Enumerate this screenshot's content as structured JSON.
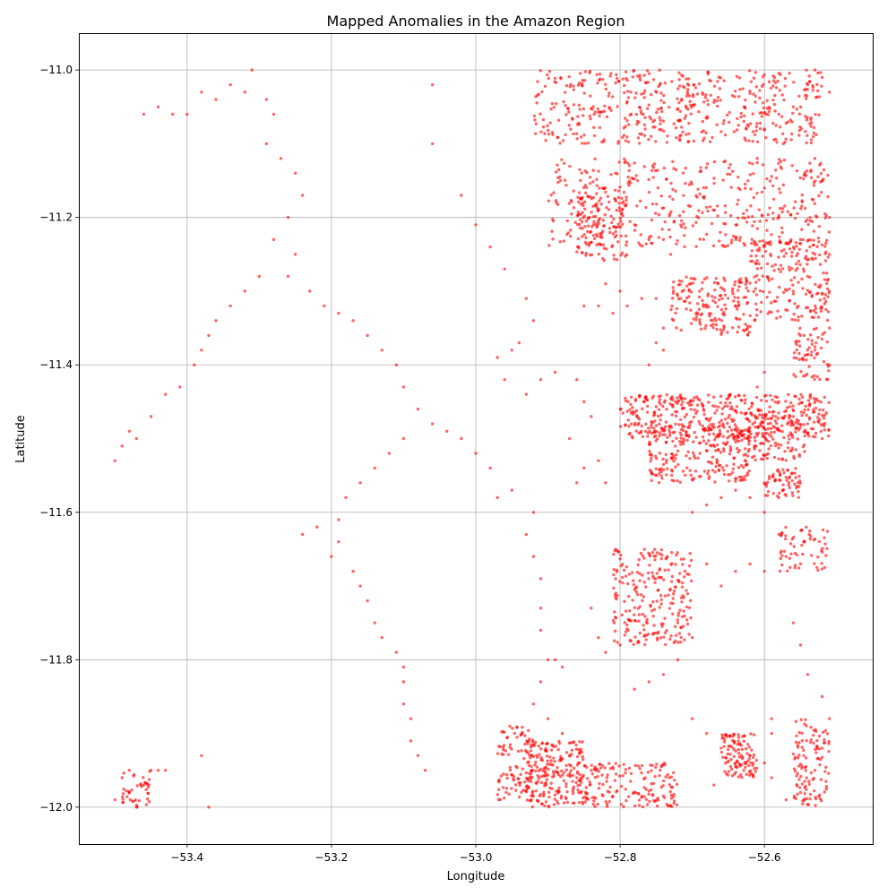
{
  "chart_data": {
    "type": "scatter",
    "title": "Mapped Anomalies in the Amazon Region",
    "xlabel": "Longitude",
    "ylabel": "Latitude",
    "xlim": [
      -53.55,
      -52.45
    ],
    "ylim": [
      -12.05,
      -10.95
    ],
    "x_ticks": [
      -53.4,
      -53.2,
      -53.0,
      -52.8,
      -52.6
    ],
    "x_tick_labels": [
      "−53.4",
      "−53.2",
      "−53.0",
      "−52.8",
      "−52.6"
    ],
    "y_ticks": [
      -11.0,
      -11.2,
      -11.4,
      -11.6,
      -11.8,
      -12.0
    ],
    "y_tick_labels": [
      "−11.0",
      "−11.2",
      "−11.4",
      "−11.6",
      "−11.8",
      "−12.0"
    ],
    "grid": true,
    "marker_color": "#ff0000",
    "marker_alpha": 0.6,
    "series": [
      {
        "points": [
          [
            -53.46,
            -11.06
          ],
          [
            -53.44,
            -11.05
          ],
          [
            -53.42,
            -11.06
          ],
          [
            -53.4,
            -11.06
          ],
          [
            -53.38,
            -11.03
          ],
          [
            -53.36,
            -11.04
          ],
          [
            -53.34,
            -11.02
          ],
          [
            -53.32,
            -11.03
          ],
          [
            -53.31,
            -11.0
          ],
          [
            -53.29,
            -11.04
          ],
          [
            -53.28,
            -11.06
          ],
          [
            -53.29,
            -11.1
          ],
          [
            -53.27,
            -11.12
          ],
          [
            -53.25,
            -11.14
          ],
          [
            -53.24,
            -11.17
          ],
          [
            -53.26,
            -11.2
          ],
          [
            -53.28,
            -11.23
          ],
          [
            -53.25,
            -11.25
          ],
          [
            -53.26,
            -11.28
          ],
          [
            -53.23,
            -11.3
          ],
          [
            -53.21,
            -11.32
          ],
          [
            -53.19,
            -11.33
          ],
          [
            -53.17,
            -11.34
          ],
          [
            -53.15,
            -11.36
          ],
          [
            -53.13,
            -11.38
          ],
          [
            -53.11,
            -11.4
          ],
          [
            -53.1,
            -11.43
          ],
          [
            -53.08,
            -11.46
          ],
          [
            -53.06,
            -11.48
          ],
          [
            -53.04,
            -11.49
          ],
          [
            -53.02,
            -11.5
          ],
          [
            -53.0,
            -11.52
          ],
          [
            -52.98,
            -11.54
          ],
          [
            -53.1,
            -11.5
          ],
          [
            -53.12,
            -11.52
          ],
          [
            -53.14,
            -11.54
          ],
          [
            -53.16,
            -11.56
          ],
          [
            -53.18,
            -11.58
          ],
          [
            -53.19,
            -11.61
          ],
          [
            -53.19,
            -11.64
          ],
          [
            -53.2,
            -11.66
          ],
          [
            -53.17,
            -11.68
          ],
          [
            -53.16,
            -11.7
          ],
          [
            -53.15,
            -11.72
          ],
          [
            -53.14,
            -11.75
          ],
          [
            -53.13,
            -11.77
          ],
          [
            -53.11,
            -11.79
          ],
          [
            -53.1,
            -11.81
          ],
          [
            -53.1,
            -11.83
          ],
          [
            -53.1,
            -11.86
          ],
          [
            -53.09,
            -11.88
          ],
          [
            -53.09,
            -11.91
          ],
          [
            -53.08,
            -11.93
          ],
          [
            -53.07,
            -11.95
          ],
          [
            -53.3,
            -11.28
          ],
          [
            -53.32,
            -11.3
          ],
          [
            -53.34,
            -11.32
          ],
          [
            -53.36,
            -11.34
          ],
          [
            -53.37,
            -11.36
          ],
          [
            -53.38,
            -11.38
          ],
          [
            -53.39,
            -11.4
          ],
          [
            -53.41,
            -11.43
          ],
          [
            -53.43,
            -11.44
          ],
          [
            -53.45,
            -11.47
          ],
          [
            -53.47,
            -11.5
          ],
          [
            -53.49,
            -11.51
          ],
          [
            -53.5,
            -11.53
          ],
          [
            -53.48,
            -11.49
          ],
          [
            -53.22,
            -11.62
          ],
          [
            -53.24,
            -11.63
          ],
          [
            -53.06,
            -11.1
          ],
          [
            -53.06,
            -11.02
          ],
          [
            -53.02,
            -11.17
          ],
          [
            -53.0,
            -11.21
          ],
          [
            -52.98,
            -11.24
          ],
          [
            -52.96,
            -11.27
          ],
          [
            -52.93,
            -11.31
          ],
          [
            -52.92,
            -11.34
          ],
          [
            -53.49,
            -11.96
          ],
          [
            -53.48,
            -11.98
          ],
          [
            -53.47,
            -12.0
          ],
          [
            -53.46,
            -11.97
          ],
          [
            -53.45,
            -11.95
          ],
          [
            -53.44,
            -11.95
          ],
          [
            -53.43,
            -11.95
          ],
          [
            -53.48,
            -11.95
          ],
          [
            -53.5,
            -11.99
          ],
          [
            -53.37,
            -12.0
          ],
          [
            -53.38,
            -11.93
          ],
          [
            -52.97,
            -11.39
          ],
          [
            -52.95,
            -11.38
          ],
          [
            -52.94,
            -11.37
          ],
          [
            -52.96,
            -11.42
          ],
          [
            -52.93,
            -11.44
          ],
          [
            -52.91,
            -11.42
          ],
          [
            -52.89,
            -11.41
          ],
          [
            -52.97,
            -11.58
          ],
          [
            -52.95,
            -11.57
          ],
          [
            -52.92,
            -11.6
          ],
          [
            -52.93,
            -11.63
          ],
          [
            -52.92,
            -11.66
          ],
          [
            -52.91,
            -11.69
          ],
          [
            -52.91,
            -11.73
          ],
          [
            -52.91,
            -11.76
          ],
          [
            -52.9,
            -11.8
          ],
          [
            -52.91,
            -11.83
          ],
          [
            -52.92,
            -11.86
          ],
          [
            -52.9,
            -11.88
          ],
          [
            -52.88,
            -11.9
          ],
          [
            -52.87,
            -11.93
          ],
          [
            -52.86,
            -11.96
          ],
          [
            -52.89,
            -11.8
          ],
          [
            -52.88,
            -11.81
          ],
          [
            -52.86,
            -11.56
          ],
          [
            -52.85,
            -11.54
          ],
          [
            -52.83,
            -11.53
          ],
          [
            -52.82,
            -11.56
          ],
          [
            -52.87,
            -11.5
          ],
          [
            -52.86,
            -11.42
          ],
          [
            -52.85,
            -11.45
          ],
          [
            -52.84,
            -11.47
          ],
          [
            -52.8,
            -11.3
          ],
          [
            -52.82,
            -11.29
          ],
          [
            -52.85,
            -11.32
          ],
          [
            -52.83,
            -11.32
          ],
          [
            -52.81,
            -11.33
          ],
          [
            -52.79,
            -11.32
          ],
          [
            -52.77,
            -11.31
          ],
          [
            -52.75,
            -11.31
          ],
          [
            -52.74,
            -11.35
          ],
          [
            -52.75,
            -11.37
          ],
          [
            -52.76,
            -11.4
          ],
          [
            -52.74,
            -11.38
          ],
          [
            -52.78,
            -11.21
          ],
          [
            -52.76,
            -11.23
          ],
          [
            -52.74,
            -11.23
          ],
          [
            -52.73,
            -11.25
          ],
          [
            -52.72,
            -11.75
          ],
          [
            -52.7,
            -11.77
          ],
          [
            -52.72,
            -11.8
          ],
          [
            -52.74,
            -11.82
          ],
          [
            -52.76,
            -11.83
          ],
          [
            -52.78,
            -11.84
          ],
          [
            -52.7,
            -11.88
          ],
          [
            -52.68,
            -11.9
          ],
          [
            -52.66,
            -11.92
          ],
          [
            -52.64,
            -11.94
          ],
          [
            -52.62,
            -11.93
          ],
          [
            -52.67,
            -11.97
          ],
          [
            -52.8,
            -11.78
          ],
          [
            -52.82,
            -11.79
          ],
          [
            -52.83,
            -11.77
          ],
          [
            -52.84,
            -11.73
          ],
          [
            -52.68,
            -11.67
          ],
          [
            -52.66,
            -11.7
          ],
          [
            -52.64,
            -11.68
          ],
          [
            -52.62,
            -11.67
          ],
          [
            -52.6,
            -11.68
          ],
          [
            -52.58,
            -11.63
          ],
          [
            -52.57,
            -11.66
          ],
          [
            -52.55,
            -11.67
          ],
          [
            -52.56,
            -11.75
          ],
          [
            -52.55,
            -11.78
          ],
          [
            -52.54,
            -11.82
          ],
          [
            -52.52,
            -11.85
          ],
          [
            -52.51,
            -11.88
          ],
          [
            -52.52,
            -11.92
          ],
          [
            -52.53,
            -11.95
          ],
          [
            -52.55,
            -11.98
          ],
          [
            -52.57,
            -11.99
          ],
          [
            -52.59,
            -11.96
          ],
          [
            -52.6,
            -11.94
          ],
          [
            -52.59,
            -11.9
          ],
          [
            -52.59,
            -11.88
          ],
          [
            -52.61,
            -11.43
          ],
          [
            -52.6,
            -11.41
          ],
          [
            -52.58,
            -11.45
          ],
          [
            -52.56,
            -11.47
          ],
          [
            -52.54,
            -11.48
          ],
          [
            -52.52,
            -11.5
          ],
          [
            -52.6,
            -11.56
          ],
          [
            -52.58,
            -11.58
          ],
          [
            -52.6,
            -11.6
          ],
          [
            -52.62,
            -11.58
          ],
          [
            -52.64,
            -11.57
          ],
          [
            -52.66,
            -11.58
          ],
          [
            -52.68,
            -11.59
          ],
          [
            -52.7,
            -11.6
          ],
          [
            -52.53,
            -11.38
          ],
          [
            -52.51,
            -11.4
          ],
          [
            -52.55,
            -11.36
          ],
          [
            -52.51,
            -11.35
          ],
          [
            -52.51,
            -11.3
          ],
          [
            -52.51,
            -11.25
          ],
          [
            -52.51,
            -11.2
          ],
          [
            -52.52,
            -11.15
          ],
          [
            -52.53,
            -11.12
          ],
          [
            -52.51,
            -11.03
          ],
          [
            -52.52,
            -11.01
          ],
          [
            -52.53,
            -11.0
          ],
          [
            -52.54,
            -11.02
          ],
          [
            -52.56,
            -11.05
          ],
          [
            -52.58,
            -11.06
          ],
          [
            -52.6,
            -11.08
          ],
          [
            -52.61,
            -11.12
          ],
          [
            -52.6,
            -11.16
          ],
          [
            -52.58,
            -11.2
          ],
          [
            -52.6,
            -11.24
          ],
          [
            -52.58,
            -11.27
          ],
          [
            -52.56,
            -11.3
          ],
          [
            -52.54,
            -11.28
          ],
          [
            -52.53,
            -11.25
          ],
          [
            -52.55,
            -11.23
          ]
        ],
        "clusters": [
          {
            "x": [
              -52.92,
              -52.7
            ],
            "y": [
              -11.1,
              -11.0
            ],
            "n": 260
          },
          {
            "x": [
              -52.72,
              -52.52
            ],
            "y": [
              -11.1,
              -11.0
            ],
            "n": 240
          },
          {
            "x": [
              -52.9,
              -52.51
            ],
            "y": [
              -11.24,
              -11.12
            ],
            "n": 420
          },
          {
            "x": [
              -52.86,
              -52.79
            ],
            "y": [
              -11.26,
              -11.16
            ],
            "n": 120
          },
          {
            "x": [
              -52.62,
              -52.51
            ],
            "y": [
              -11.34,
              -11.23
            ],
            "n": 200
          },
          {
            "x": [
              -52.73,
              -52.62
            ],
            "y": [
              -11.36,
              -11.28
            ],
            "n": 170
          },
          {
            "x": [
              -52.56,
              -52.51
            ],
            "y": [
              -11.42,
              -11.35
            ],
            "n": 60
          },
          {
            "x": [
              -52.8,
              -52.51
            ],
            "y": [
              -11.5,
              -11.44
            ],
            "n": 420
          },
          {
            "x": [
              -52.76,
              -52.62
            ],
            "y": [
              -11.56,
              -11.48
            ],
            "n": 230
          },
          {
            "x": [
              -52.63,
              -52.54
            ],
            "y": [
              -11.53,
              -11.46
            ],
            "n": 130
          },
          {
            "x": [
              -52.6,
              -52.55
            ],
            "y": [
              -11.58,
              -11.54
            ],
            "n": 60
          },
          {
            "x": [
              -52.58,
              -52.51
            ],
            "y": [
              -11.68,
              -11.62
            ],
            "n": 60
          },
          {
            "x": [
              -52.81,
              -52.7
            ],
            "y": [
              -11.78,
              -11.65
            ],
            "n": 240
          },
          {
            "x": [
              -52.97,
              -52.92
            ],
            "y": [
              -11.99,
              -11.89
            ],
            "n": 100
          },
          {
            "x": [
              -52.93,
              -52.85
            ],
            "y": [
              -12.0,
              -11.91
            ],
            "n": 220
          },
          {
            "x": [
              -52.85,
              -52.72
            ],
            "y": [
              -12.0,
              -11.94
            ],
            "n": 160
          },
          {
            "x": [
              -52.66,
              -52.61
            ],
            "y": [
              -11.96,
              -11.9
            ],
            "n": 110
          },
          {
            "x": [
              -52.56,
              -52.51
            ],
            "y": [
              -12.0,
              -11.88
            ],
            "n": 110
          },
          {
            "x": [
              -53.49,
              -53.45
            ],
            "y": [
              -12.0,
              -11.95
            ],
            "n": 40
          }
        ]
      }
    ]
  }
}
